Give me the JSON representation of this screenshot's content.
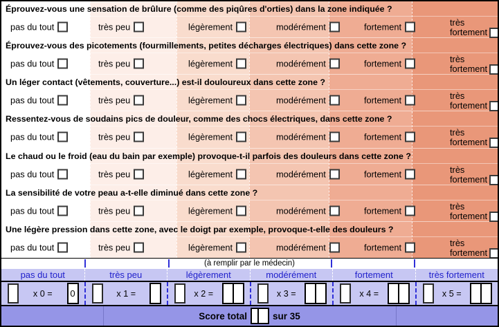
{
  "colors": {
    "band_columns": [
      "#ffffff",
      "#fdeee8",
      "#f9dccd",
      "#f4c5b1",
      "#efac93",
      "#e99779"
    ],
    "panel_bg": "#c7c7f3",
    "score_bg": "#9595e7",
    "header_text_blue": "#2121cc",
    "dashed_line_blue": "#2f2fd8"
  },
  "questionnaire": {
    "options": [
      "pas du tout",
      "très peu",
      "légèrement",
      "modérément",
      "fortement",
      "très fortement"
    ],
    "questions": [
      "Éprouvez-vous une sensation de brûlure (comme des piqûres d'orties) dans la zone indiquée ?",
      "Éprouvez-vous des picotements (fourmillements, petites décharges électriques) dans cette zone ?",
      "Un léger contact (vêtements, couverture...) est-il douloureux dans cette zone ?",
      "Ressentez-vous de soudains pics de douleur, comme des chocs électriques, dans cette zone ?",
      "Le chaud ou le froid (eau du bain par exemple) provoque-t-il parfois des douleurs dans cette zone ?",
      "La sensibilité de votre peau a-t-elle diminué dans cette zone ?",
      "Une légère pression dans cette zone, avec le doigt par exemple, provoque-t-elle des douleurs ?"
    ]
  },
  "doctor_section": {
    "note": "(à remplir par le médecin)",
    "headers": [
      "pas du tout",
      "très peu",
      "légèrement",
      "modérément",
      "fortement",
      "très fortement"
    ],
    "multipliers": [
      {
        "label": "x 0 =",
        "value": "0",
        "boxes": 1
      },
      {
        "label": "x 1 =",
        "value": "",
        "boxes": 1
      },
      {
        "label": "x 2 =",
        "value": "",
        "boxes": 2
      },
      {
        "label": "x 3 =",
        "value": "",
        "boxes": 2
      },
      {
        "label": "x 4 =",
        "value": "",
        "boxes": 2
      },
      {
        "label": "x 5 =",
        "value": "",
        "boxes": 2
      }
    ],
    "score": {
      "label": "Score total",
      "suffix": "sur 35",
      "boxes": 2
    }
  }
}
